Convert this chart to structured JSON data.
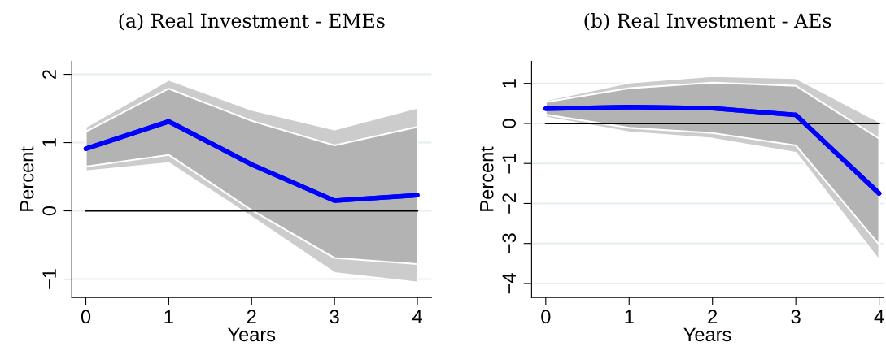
{
  "chart_data": [
    {
      "type": "line",
      "title": "(a) Real Investment - EMEs",
      "xlabel": "Years",
      "ylabel": "Percent",
      "x": [
        0,
        1,
        2,
        3,
        4
      ],
      "xlim": [
        -0.17,
        4.17
      ],
      "xticks": [
        0,
        1,
        2,
        3,
        4
      ],
      "ylim": [
        -1.27,
        2.19
      ],
      "yticks": [
        {
          "value": -1,
          "label": "−1"
        },
        0,
        1,
        2
      ],
      "grid": "y",
      "series": [
        {
          "color": "#0000ff",
          "values": [
            0.91,
            1.31,
            0.68,
            0.15,
            0.23
          ],
          "lower": [
            0.58,
            0.7,
            -0.09,
            -0.91,
            -1.05
          ],
          "upper": [
            1.23,
            1.92,
            1.48,
            1.19,
            1.51
          ]
        },
        {
          "color": "#0000ff",
          "values": [
            0.91,
            1.31,
            0.68,
            0.15,
            0.23
          ],
          "lower": [
            0.65,
            0.82,
            0.01,
            -0.69,
            -0.78
          ],
          "upper": [
            1.16,
            1.79,
            1.32,
            0.96,
            1.23
          ]
        }
      ],
      "ref_lines": [
        {
          "axis": "y",
          "value": 0,
          "color": "#000000"
        }
      ]
    },
    {
      "type": "line",
      "title": "(b) Real Investment - AEs",
      "xlabel": "Years",
      "ylabel": "Percent",
      "x": [
        0,
        1,
        2,
        3,
        4
      ],
      "xlim": [
        -0.17,
        4.05
      ],
      "xticks": [
        0,
        1,
        2,
        3,
        4
      ],
      "ylim": [
        -4.35,
        1.55
      ],
      "yticks": [
        {
          "value": -4,
          "label": "−4"
        },
        {
          "value": -3,
          "label": "−3"
        },
        {
          "value": -2,
          "label": "−2"
        },
        {
          "value": -1,
          "label": "−1"
        },
        0,
        1
      ],
      "grid": "y",
      "series": [
        {
          "color": "#0000ff",
          "values": [
            0.37,
            0.41,
            0.38,
            0.21,
            -1.75
          ],
          "lower": [
            0.15,
            -0.22,
            -0.38,
            -0.73,
            -3.42
          ],
          "upper": [
            0.58,
            1.02,
            1.18,
            1.13,
            0.04
          ]
        },
        {
          "color": "#0000ff",
          "values": [
            0.37,
            0.41,
            0.38,
            0.21,
            -1.75
          ],
          "lower": [
            0.22,
            -0.11,
            -0.24,
            -0.55,
            -3.03
          ],
          "upper": [
            0.53,
            0.88,
            1.02,
            0.94,
            -0.38
          ]
        }
      ],
      "ref_lines": [
        {
          "axis": "y",
          "value": 0,
          "color": "#000000"
        }
      ]
    }
  ]
}
